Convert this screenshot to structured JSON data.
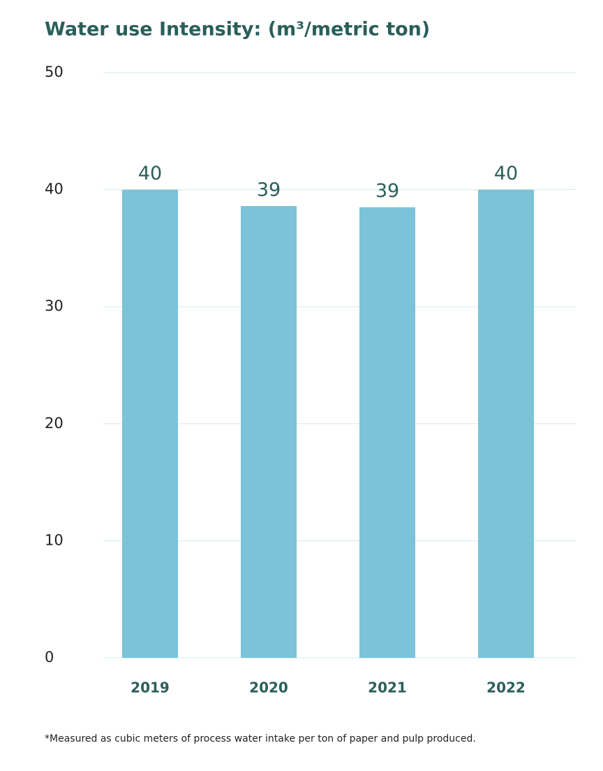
{
  "chart_data": {
    "type": "bar",
    "title": "Water use Intensity: (m³/metric ton)",
    "categories": [
      "2019",
      "2020",
      "2021",
      "2022"
    ],
    "values": [
      40,
      38.6,
      38.5,
      40
    ],
    "value_labels": [
      "40",
      "39",
      "39",
      "40"
    ],
    "color": "#7bc3d8",
    "ylim": [
      0,
      50
    ],
    "yticks": [
      0,
      10,
      20,
      30,
      40,
      50
    ],
    "grid": true,
    "footnote": "*Measured as cubic meters of process water intake per ton of paper and pulp produced."
  }
}
